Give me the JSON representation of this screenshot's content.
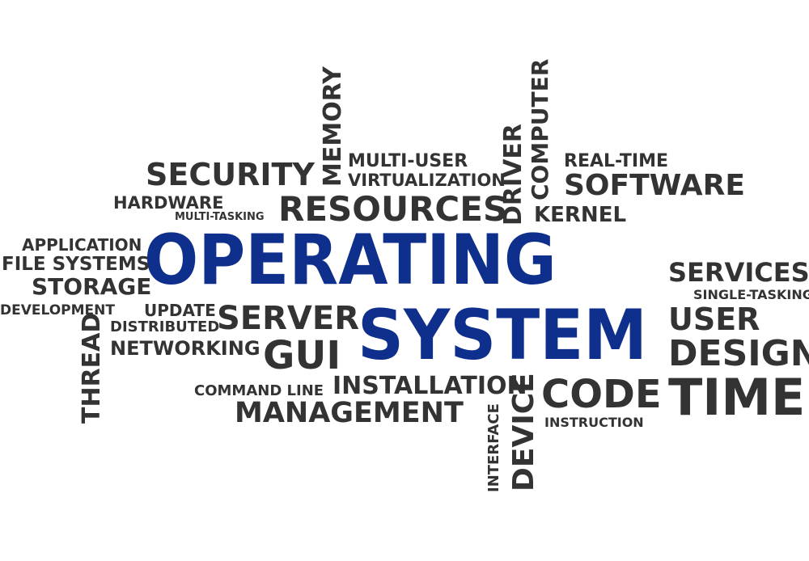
{
  "colors": {
    "background": "#ffffff",
    "word_dark": "#333333",
    "word_highlight": "#0f2f8c"
  },
  "words": {
    "operating": "OPERATING",
    "system": "SYSTEM",
    "security": "SECURITY",
    "hardware": "HARDWARE",
    "multi_tasking": "MULTI-TASKING",
    "memory": "MEMORY",
    "multi_user": "MULTI-USER",
    "virtualization": "VIRTUALIZATION",
    "resources": "RESOURCES",
    "driver": "DRIVER",
    "computer": "COMPUTER",
    "real_time": "REAL-TIME",
    "software": "SOFTWARE",
    "kernel": "KERNEL",
    "application": "APPLICATION",
    "file_systems": "FILE SYSTEMS",
    "storage": "STORAGE",
    "services": "SERVICES",
    "single_tasking": "SINGLE-TASKING",
    "development": "DEVELOPMENT",
    "update": "UPDATE",
    "server": "SERVER",
    "distributed": "DISTRIBUTED",
    "networking": "NETWORKING",
    "gui": "GUI",
    "user": "USER",
    "design": "DESIGN",
    "thread": "THREAD",
    "command_line": "COMMAND LINE",
    "installation": "INSTALLATION",
    "management": "MANAGEMENT",
    "interface": "INTERFACE",
    "device": "DEVICE",
    "code": "CODE",
    "instruction": "INSTRUCTION",
    "time": "TIME"
  }
}
